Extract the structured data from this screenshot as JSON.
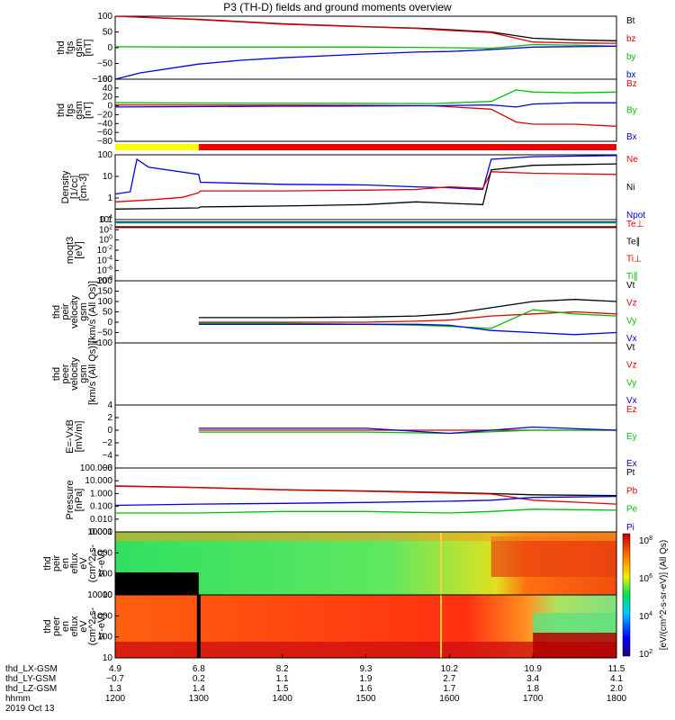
{
  "chart_data": {
    "type": "line",
    "title": "P3 (TH-D) fields and ground moments overview",
    "panels": [
      {
        "id": "fgs_gsm",
        "ylabel": [
          "thd",
          "fgs",
          "gsm",
          "[nT]"
        ],
        "scale": "linear",
        "ylim": [
          -100,
          100
        ],
        "ticks": [
          "100",
          "50",
          "0",
          "−50",
          "−100"
        ],
        "legend": [
          {
            "name": "Bt",
            "color": "#000000"
          },
          {
            "name": "bz",
            "color": "#e00000"
          },
          {
            "name": "by",
            "color": "#00c000"
          },
          {
            "name": "bx",
            "color": "#0000e0"
          }
        ],
        "series": [
          {
            "name": "Bt",
            "color": "#000000",
            "x": [
              1200,
              1300,
              1400,
              1500,
              1560,
              1580,
              1600,
              1650,
              1700,
              1750,
              1800
            ],
            "y": [
              102,
              90,
              76,
              67,
              62,
              60,
              57,
              50,
              30,
              25,
              22
            ]
          },
          {
            "name": "bz",
            "color": "#e00000",
            "x": [
              1200,
              1300,
              1400,
              1500,
              1560,
              1580,
              1600,
              1650,
              1700,
              1750,
              1800
            ],
            "y": [
              101,
              89,
              75,
              66,
              61,
              58,
              55,
              48,
              18,
              15,
              14
            ]
          },
          {
            "name": "by",
            "color": "#00c000",
            "x": [
              1200,
              1300,
              1400,
              1500,
              1560,
              1600,
              1650,
              1700,
              1750,
              1800
            ],
            "y": [
              3,
              2,
              2,
              2,
              1,
              0,
              -2,
              10,
              8,
              5
            ]
          },
          {
            "name": "bx",
            "color": "#0000e0",
            "x": [
              1200,
              1230,
              1300,
              1350,
              1400,
              1500,
              1560,
              1600,
              1650,
              1700,
              1800
            ],
            "y": [
              -100,
              -80,
              -52,
              -40,
              -32,
              -20,
              -14,
              -12,
              -6,
              2,
              5
            ]
          }
        ]
      },
      {
        "id": "fgs_gsm_dsl",
        "ylabel": [
          "thd",
          "fgs",
          "gsm",
          "[nT]"
        ],
        "scale": "linear",
        "ylim": [
          -85,
          60
        ],
        "ticks": [
          "60",
          "40",
          "20",
          "0",
          "−20",
          "−40",
          "−60",
          "−80"
        ],
        "legend": [
          {
            "name": "Bz",
            "color": "#e00000"
          },
          {
            "name": "By",
            "color": "#00c000"
          },
          {
            "name": "Bx",
            "color": "#0000e0"
          }
        ],
        "series": [
          {
            "name": "Bz",
            "color": "#e00000",
            "x": [
              1200,
              1400,
              1580,
              1650,
              1680,
              1700,
              1750,
              1800
            ],
            "y": [
              0,
              0,
              -2,
              -10,
              -40,
              -45,
              -45,
              -50
            ]
          },
          {
            "name": "By",
            "color": "#00c000",
            "x": [
              1200,
              1400,
              1580,
              1650,
              1680,
              1700,
              1750,
              1800
            ],
            "y": [
              5,
              4,
              3,
              8,
              35,
              30,
              28,
              30
            ]
          },
          {
            "name": "Bx",
            "color": "#0000e0",
            "x": [
              1200,
              1400,
              1580,
              1650,
              1680,
              1700,
              1750,
              1800
            ],
            "y": [
              -5,
              -3,
              -2,
              0,
              -5,
              2,
              5,
              5
            ]
          }
        ]
      },
      {
        "id": "density",
        "ylabel": [
          "Density",
          "[1/cc]",
          "[cm-3]"
        ],
        "scale": "log",
        "ylim": [
          0.01,
          200
        ],
        "ticks": [
          "100",
          "10",
          "1",
          "0.1"
        ],
        "legend": [
          {
            "name": "Ne",
            "color": "#e00000"
          },
          {
            "name": "Ni",
            "color": "#000000"
          },
          {
            "name": "Npot",
            "color": "#0000e0"
          }
        ],
        "series": [
          {
            "name": "Npot",
            "color": "#0000e0",
            "x": [
              1200,
              1218,
              1226,
              1240,
              1300,
              1302,
              1400,
              1500,
              1560,
              1600,
              1640,
              1650,
              1700,
              1800
            ],
            "y": [
              0.5,
              0.7,
              100,
              30,
              10,
              3,
              2.2,
              2,
              1.5,
              1.3,
              1,
              100,
              150,
              180
            ]
          },
          {
            "name": "Ne",
            "color": "#e00000",
            "x": [
              1200,
              1240,
              1280,
              1300,
              1302,
              1400,
              1500,
              1560,
              1600,
              1640,
              1650,
              1700,
              1800
            ],
            "y": [
              0.15,
              0.2,
              0.3,
              0.6,
              0.8,
              0.8,
              0.9,
              1,
              1.5,
              1.2,
              15,
              12,
              10
            ]
          },
          {
            "name": "Ni",
            "color": "#000000",
            "x": [
              1200,
              1300,
              1302,
              1400,
              1500,
              1560,
              1600,
              1640,
              1650,
              1700,
              1800
            ],
            "y": [
              0.05,
              0.06,
              0.07,
              0.08,
              0.1,
              0.15,
              0.12,
              0.1,
              20,
              40,
              50
            ]
          }
        ]
      },
      {
        "id": "moqt3",
        "ylabel": [
          "moqt3",
          "[eV]"
        ],
        "scale": "log",
        "ylim": [
          1e-09,
          10000
        ],
        "ticks": [
          "10^4",
          "10^2",
          "10^0",
          "10^-2",
          "10^-4",
          "10^-6",
          "10^-8"
        ],
        "legend": [
          {
            "name": "Te⊥",
            "color": "#e00000"
          },
          {
            "name": "Te∥",
            "color": "#000000"
          },
          {
            "name": "Ti⊥",
            "color": "#e00000"
          },
          {
            "name": "Ti∥",
            "color": "#00c000"
          }
        ],
        "series": [
          {
            "name": "Te⊥",
            "color": "#e00000",
            "x": [
              1200,
              1800
            ],
            "y": [
              200,
              200
            ]
          },
          {
            "name": "Te∥",
            "color": "#000000",
            "x": [
              1200,
              1800
            ],
            "y": [
              300,
              300
            ]
          },
          {
            "name": "Ti⊥",
            "color": "#0000e0",
            "x": [
              1200,
              1800
            ],
            "y": [
              3000,
              3000
            ]
          },
          {
            "name": "Ti∥",
            "color": "#00c000",
            "x": [
              1200,
              1800
            ],
            "y": [
              2000,
              2000
            ]
          }
        ]
      },
      {
        "id": "peir_velocity",
        "ylabel": [
          "thd",
          "peir",
          "velocity",
          "gsm",
          "[km/s (All Qs)]"
        ],
        "scale": "linear",
        "ylim": [
          -100,
          200
        ],
        "ticks": [
          "200",
          "150",
          "100",
          "50",
          "0",
          "−50",
          "−100"
        ],
        "legend": [
          {
            "name": "Vt",
            "color": "#000000"
          },
          {
            "name": "Vz",
            "color": "#e00000"
          },
          {
            "name": "Vy",
            "color": "#00c000"
          },
          {
            "name": "Vx",
            "color": "#0000e0"
          }
        ],
        "series": [
          {
            "name": "Vt",
            "color": "#000000",
            "x": [
              1300,
              1400,
              1500,
              1560,
              1600,
              1650,
              1700,
              1750,
              1800
            ],
            "y": [
              22,
              22,
              25,
              30,
              40,
              70,
              100,
              110,
              100
            ]
          },
          {
            "name": "Vz",
            "color": "#e00000",
            "x": [
              1300,
              1400,
              1500,
              1560,
              1600,
              1650,
              1700,
              1750,
              1800
            ],
            "y": [
              0,
              0,
              0,
              5,
              10,
              30,
              40,
              50,
              40
            ]
          },
          {
            "name": "Vy",
            "color": "#00c000",
            "x": [
              1300,
              1400,
              1500,
              1560,
              1600,
              1650,
              1700,
              1750,
              1800
            ],
            "y": [
              -5,
              -5,
              -10,
              -15,
              -20,
              -30,
              60,
              40,
              30
            ]
          },
          {
            "name": "Vx",
            "color": "#0000e0",
            "x": [
              1300,
              1400,
              1500,
              1560,
              1600,
              1650,
              1700,
              1750,
              1800
            ],
            "y": [
              -10,
              -10,
              -10,
              -10,
              -15,
              -40,
              -50,
              -60,
              -50
            ]
          }
        ]
      },
      {
        "id": "peer_velocity",
        "ylabel": [
          "thd",
          "peer",
          "velocity",
          "gsm",
          "[km/s (All Qs)]"
        ],
        "scale": "linear",
        "ylim": [
          -100,
          200
        ],
        "ticks": [],
        "legend": [
          {
            "name": "Vt",
            "color": "#000000"
          },
          {
            "name": "Vz",
            "color": "#e00000"
          },
          {
            "name": "Vy",
            "color": "#00c000"
          },
          {
            "name": "Vx",
            "color": "#0000e0"
          }
        ],
        "series": []
      },
      {
        "id": "e_field",
        "ylabel": [
          "E=-VxB",
          "[mV/m]"
        ],
        "scale": "linear",
        "ylim": [
          -6,
          4
        ],
        "ticks": [
          "4",
          "2",
          "0",
          "−2",
          "−4",
          "−6"
        ],
        "legend": [
          {
            "name": "Ez",
            "color": "#e00000"
          },
          {
            "name": "Ey",
            "color": "#00c000"
          },
          {
            "name": "Ex",
            "color": "#0000e0"
          }
        ],
        "series": [
          {
            "name": "Ez",
            "color": "#e00000",
            "x": [
              1300,
              1400,
              1500,
              1600,
              1700,
              1800
            ],
            "y": [
              0,
              0,
              0,
              0,
              0,
              0
            ]
          },
          {
            "name": "Ey",
            "color": "#00c000",
            "x": [
              1300,
              1400,
              1500,
              1600,
              1700,
              1800
            ],
            "y": [
              -0.3,
              -0.3,
              -0.3,
              -0.5,
              0,
              0
            ]
          },
          {
            "name": "Ex",
            "color": "#0000e0",
            "x": [
              1300,
              1400,
              1500,
              1600,
              1700,
              1800
            ],
            "y": [
              0.3,
              0.3,
              0.3,
              -0.5,
              0.5,
              0
            ]
          }
        ]
      },
      {
        "id": "pressure",
        "ylabel": [
          "Pressure",
          "[nPa]"
        ],
        "scale": "log",
        "ylim": [
          0.001,
          100
        ],
        "ticks": [
          "100.000",
          "10.000",
          "1.000",
          "0.100",
          "0.010",
          "0.001"
        ],
        "legend": [
          {
            "name": "Pt",
            "color": "#000000"
          },
          {
            "name": "Pb",
            "color": "#e00000"
          },
          {
            "name": "Pe",
            "color": "#00c000"
          },
          {
            "name": "Pi",
            "color": "#0000e0"
          }
        ],
        "series": [
          {
            "name": "Pt",
            "color": "#000000",
            "x": [
              1200,
              1300,
              1400,
              1500,
              1600,
              1650,
              1700,
              1800
            ],
            "y": [
              4,
              3,
              2,
              1.6,
              1.2,
              1,
              0.8,
              0.7
            ]
          },
          {
            "name": "Pb",
            "color": "#e00000",
            "x": [
              1200,
              1300,
              1400,
              1500,
              1600,
              1650,
              1700,
              1800
            ],
            "y": [
              3.8,
              2.9,
              1.9,
              1.5,
              1.1,
              0.9,
              0.3,
              0.15
            ]
          },
          {
            "name": "Pi",
            "color": "#0000e0",
            "x": [
              1200,
              1300,
              1400,
              1500,
              1600,
              1650,
              1700,
              1800
            ],
            "y": [
              0.12,
              0.15,
              0.17,
              0.2,
              0.25,
              0.3,
              0.5,
              0.6
            ]
          },
          {
            "name": "Pe",
            "color": "#00c000",
            "x": [
              1200,
              1300,
              1400,
              1500,
              1600,
              1650,
              1700,
              1800
            ],
            "y": [
              0.03,
              0.03,
              0.04,
              0.04,
              0.03,
              0.04,
              0.06,
              0.05
            ]
          }
        ]
      },
      {
        "id": "peir_eflux",
        "type": "heatmap",
        "ylabel": [
          "thd",
          "peir",
          "en",
          "eflux",
          "eV",
          "(cm^2-s-",
          "sr-eV)"
        ],
        "scale": "log",
        "ylim": [
          5,
          20000
        ],
        "ticks": [
          "10000",
          "1000",
          "100",
          "10"
        ]
      },
      {
        "id": "peer_eflux",
        "type": "heatmap",
        "ylabel": [
          "thd",
          "peer",
          "en",
          "eflux",
          "eV",
          "(cm^2-s-",
          "sr-eV)"
        ],
        "scale": "log",
        "ylim": [
          5,
          20000
        ],
        "ticks": [
          "10000",
          "1000",
          "100",
          "10"
        ]
      }
    ],
    "colorbar": {
      "label": "[eV/(cm^2-s-sr-eV)] (All Qs)",
      "ticks": [
        "10^8",
        "10^6",
        "10^4",
        "10^2"
      ]
    },
    "x_axis": {
      "rows": [
        {
          "label": "thd_LX-GSM",
          "values": [
            "4.9",
            "6.8",
            "8.2",
            "9.3",
            "10.2",
            "10.9",
            "11.5"
          ]
        },
        {
          "label": "thd_LY-GSM",
          "values": [
            "−0.7",
            "0.2",
            "1.1",
            "1.9",
            "2.7",
            "3.4",
            "4.1"
          ]
        },
        {
          "label": "thd_LZ-GSM",
          "values": [
            "1.3",
            "1.4",
            "1.5",
            "1.6",
            "1.7",
            "1.8",
            "2.0"
          ]
        },
        {
          "label": "hhmm",
          "values": [
            "1200",
            "1300",
            "1400",
            "1500",
            "1600",
            "1700",
            "1800"
          ]
        }
      ],
      "date": "2019 Oct 13"
    },
    "status_bar": [
      {
        "from": 1200,
        "to": 1300,
        "color": "#ffff00"
      },
      {
        "from": 1300,
        "to": 1800,
        "color": "#ee0000"
      }
    ]
  }
}
